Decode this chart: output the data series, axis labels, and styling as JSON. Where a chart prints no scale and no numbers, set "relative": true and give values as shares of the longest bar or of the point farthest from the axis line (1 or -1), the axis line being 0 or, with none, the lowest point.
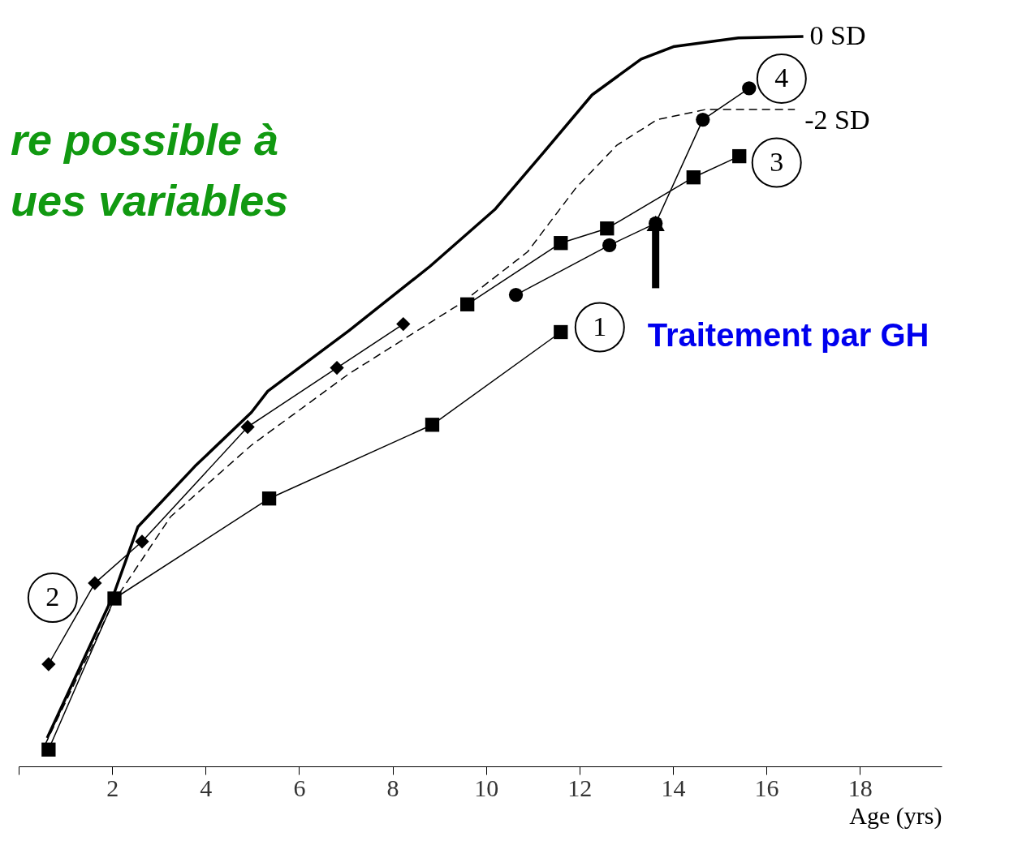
{
  "chart_data": {
    "type": "line",
    "relative": true,
    "xlabel": "Age (yrs)",
    "xlim": [
      0,
      19.75
    ],
    "xticks": [
      {
        "value": 0,
        "label": null
      },
      2,
      4,
      6,
      8,
      10,
      12,
      14,
      16,
      18
    ],
    "grid": false,
    "tick_labels": "x",
    "series": [
      {
        "name": "0 SD",
        "color": "#000000",
        "line_style": "solid",
        "marker": "none",
        "x": [
          0.61,
          2.03,
          2.55,
          3.77,
          4.98,
          5.33,
          7.07,
          8.8,
          10.19,
          11.23,
          12.27,
          13.32,
          14.01,
          15.4,
          16.79
        ],
        "values": [
          0.039,
          0.235,
          0.328,
          0.411,
          0.485,
          0.514,
          0.597,
          0.685,
          0.763,
          0.841,
          0.92,
          0.969,
          0.986,
          0.998,
          1.0
        ]
      },
      {
        "name": "-2 SD",
        "color": "#000000",
        "line_style": "dashed",
        "marker": "none",
        "x": [
          0.56,
          2.03,
          3.25,
          4.98,
          7.07,
          9.5,
          10.89,
          11.93,
          12.8,
          13.66,
          14.7,
          16.61
        ],
        "values": [
          0.029,
          0.225,
          0.342,
          0.44,
          0.538,
          0.636,
          0.705,
          0.793,
          0.851,
          0.886,
          0.9,
          0.9
        ]
      },
      {
        "name": "1",
        "color": "#000000",
        "line_style": "solid",
        "marker": "square",
        "x": [
          0.64,
          2.05,
          5.36,
          8.85,
          11.6
        ],
        "values": [
          0.023,
          0.23,
          0.367,
          0.468,
          0.595
        ]
      },
      {
        "name": "2",
        "color": "#000000",
        "line_style": "solid",
        "marker": "diamond",
        "x": [
          0.64,
          1.63,
          2.64,
          4.9,
          6.81,
          8.23
        ],
        "values": [
          0.14,
          0.251,
          0.308,
          0.465,
          0.546,
          0.606
        ]
      },
      {
        "name": "3",
        "color": "#000000",
        "line_style": "solid",
        "marker": "square",
        "x": [
          9.6,
          11.6,
          12.59,
          14.44,
          15.42
        ],
        "values": [
          0.633,
          0.717,
          0.737,
          0.807,
          0.836
        ]
      },
      {
        "name": "4",
        "color": "#000000",
        "line_style": "solid",
        "marker": "circle",
        "x": [
          10.64,
          12.64,
          13.63,
          14.64,
          15.63
        ],
        "values": [
          0.646,
          0.714,
          0.744,
          0.886,
          0.929
        ]
      }
    ],
    "annotations": [
      {
        "text": "Traitement par GH",
        "x": 13.63,
        "y": 0.744
      },
      "re possible à",
      "ues variables"
    ]
  }
}
